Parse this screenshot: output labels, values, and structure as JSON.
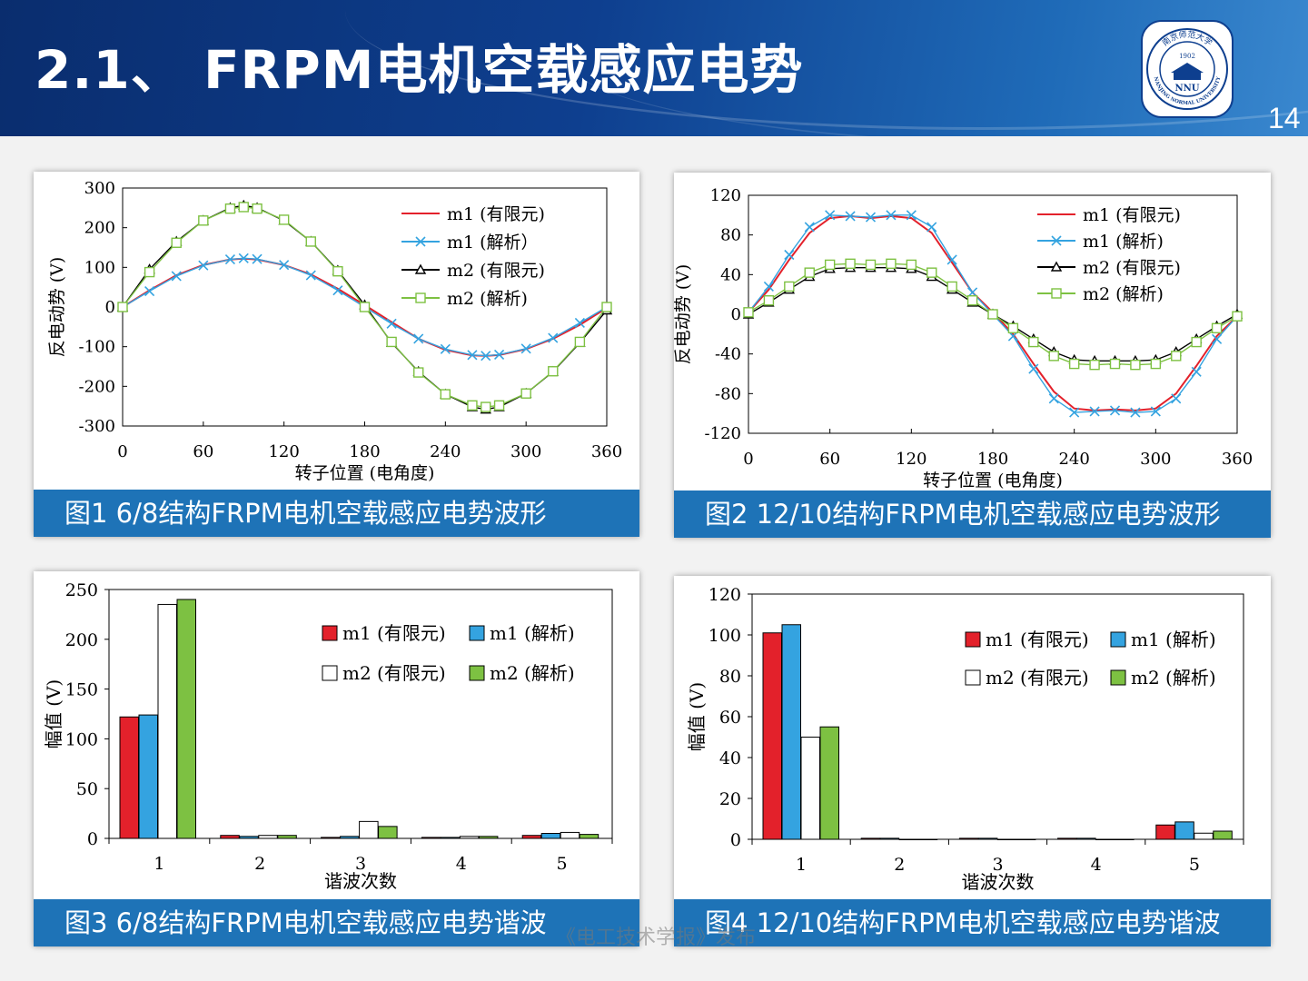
{
  "page": {
    "title": "2.1、 FRPM电机空载感应电势",
    "page_number": "14",
    "watermark": "《电工技术学报》发布",
    "logo": {
      "text_top": "南京师范大学",
      "year": "1902",
      "abbr": "NNU",
      "text_bottom": "NANJING NORMAL UNIVERSITY"
    }
  },
  "captions": [
    "图1  6/8结构FRPM电机空载感应电势波形",
    "图2  12/10结构FRPM电机空载感应电势波形",
    "图3  6/8结构FRPM电机空载感应电势谐波",
    "图4  12/10结构FRPM电机空载感应电势谐波"
  ],
  "colors": {
    "red": "#e3212b",
    "blue": "#34a3e0",
    "black": "#000000",
    "green": "#7dc142",
    "caption_bg": "#1e73b7"
  },
  "chart_data": [
    {
      "type": "line",
      "xlabel": "转子位置 (电角度)",
      "ylabel": "反电动势 (V)",
      "xlim": [
        0,
        360
      ],
      "ylim": [
        -300,
        300
      ],
      "xticks": [
        0,
        60,
        120,
        180,
        240,
        300,
        360
      ],
      "yticks": [
        -300,
        -200,
        -100,
        0,
        100,
        200,
        300
      ],
      "x": [
        0,
        20,
        40,
        60,
        80,
        90,
        100,
        120,
        140,
        160,
        180,
        200,
        220,
        240,
        260,
        270,
        280,
        300,
        320,
        340,
        360
      ],
      "legend": "top-right",
      "series": [
        {
          "name": "m1 (有限元)",
          "style": "line",
          "color": "#e3212b",
          "values": [
            0,
            42,
            80,
            106,
            120,
            122,
            120,
            106,
            82,
            46,
            5,
            -38,
            -80,
            -108,
            -122,
            -123,
            -121,
            -106,
            -80,
            -45,
            -2
          ]
        },
        {
          "name": "m1 (解析）",
          "style": "x",
          "color": "#34a3e0",
          "values": [
            0,
            40,
            78,
            105,
            120,
            123,
            121,
            106,
            80,
            42,
            0,
            -42,
            -80,
            -106,
            -121,
            -123,
            -120,
            -105,
            -78,
            -40,
            0
          ]
        },
        {
          "name": "m2 (有限元)",
          "style": "triangle",
          "color": "#000000",
          "values": [
            0,
            95,
            165,
            218,
            250,
            256,
            250,
            218,
            165,
            92,
            5,
            -90,
            -163,
            -220,
            -252,
            -258,
            -252,
            -218,
            -163,
            -90,
            -8
          ]
        },
        {
          "name": "m2 (解析)",
          "style": "square",
          "color": "#7dc142",
          "values": [
            0,
            88,
            162,
            218,
            248,
            252,
            248,
            220,
            165,
            90,
            0,
            -88,
            -165,
            -220,
            -248,
            -252,
            -248,
            -218,
            -162,
            -88,
            0
          ]
        }
      ]
    },
    {
      "type": "line",
      "xlabel": "转子位置 (电角度)",
      "ylabel": "反电动势 (V)",
      "xlim": [
        0,
        360
      ],
      "ylim": [
        -120,
        120
      ],
      "xticks": [
        0,
        60,
        120,
        180,
        240,
        300,
        360
      ],
      "yticks": [
        -120,
        -80,
        -40,
        0,
        40,
        80,
        120
      ],
      "x": [
        0,
        15,
        30,
        45,
        60,
        75,
        90,
        105,
        120,
        135,
        150,
        165,
        180,
        195,
        210,
        225,
        240,
        255,
        270,
        285,
        300,
        315,
        330,
        345,
        360
      ],
      "legend": "top-right",
      "series": [
        {
          "name": "m1 (有限元)",
          "style": "line",
          "color": "#e3212b",
          "values": [
            2,
            25,
            55,
            82,
            97,
            99,
            97,
            99,
            97,
            82,
            52,
            22,
            2,
            -20,
            -50,
            -78,
            -95,
            -97,
            -96,
            -97,
            -95,
            -80,
            -52,
            -22,
            -2
          ]
        },
        {
          "name": "m1 (解析)",
          "style": "x",
          "color": "#34a3e0",
          "values": [
            2,
            28,
            60,
            88,
            100,
            99,
            98,
            100,
            100,
            88,
            55,
            22,
            0,
            -22,
            -55,
            -85,
            -99,
            -98,
            -97,
            -99,
            -98,
            -85,
            -58,
            -25,
            -2
          ]
        },
        {
          "name": "m2 (有限元)",
          "style": "triangle",
          "color": "#000000",
          "values": [
            0,
            12,
            25,
            38,
            46,
            47,
            47,
            47,
            46,
            38,
            25,
            12,
            0,
            -12,
            -25,
            -38,
            -46,
            -47,
            -47,
            -47,
            -46,
            -38,
            -25,
            -12,
            0
          ]
        },
        {
          "name": "m2 (解析)",
          "style": "square",
          "color": "#7dc142",
          "values": [
            2,
            14,
            28,
            42,
            50,
            51,
            50,
            51,
            50,
            42,
            28,
            14,
            0,
            -14,
            -28,
            -42,
            -50,
            -51,
            -50,
            -51,
            -50,
            -42,
            -28,
            -14,
            -2
          ]
        }
      ]
    },
    {
      "type": "bar",
      "xlabel": "谐波次数",
      "ylabel": "幅值 (V)",
      "ylim": [
        0,
        250
      ],
      "yticks": [
        0,
        50,
        100,
        150,
        200,
        250
      ],
      "categories": [
        "1",
        "2",
        "3",
        "4",
        "5"
      ],
      "legend": "top-right",
      "series": [
        {
          "name": "m1 (有限元)",
          "color": "#e3212b",
          "values": [
            122,
            3,
            1,
            1,
            3
          ]
        },
        {
          "name": "m1 (解析)",
          "color": "#34a3e0",
          "values": [
            124,
            2,
            2,
            1,
            5
          ]
        },
        {
          "name": "m2 (有限元)",
          "color": "#ffffff",
          "values": [
            235,
            3,
            17,
            2,
            6
          ]
        },
        {
          "name": "m2 (解析)",
          "color": "#7dc142",
          "values": [
            240,
            3,
            12,
            2,
            4
          ]
        }
      ]
    },
    {
      "type": "bar",
      "xlabel": "谐波次数",
      "ylabel": "幅值 (V)",
      "ylim": [
        0,
        120
      ],
      "yticks": [
        0,
        20,
        40,
        60,
        80,
        100,
        120
      ],
      "categories": [
        "1",
        "2",
        "3",
        "4",
        "5"
      ],
      "legend": "top-right",
      "series": [
        {
          "name": "m1 (有限元)",
          "color": "#e3212b",
          "values": [
            101,
            0.5,
            0.5,
            0.5,
            7
          ]
        },
        {
          "name": "m1 (解析)",
          "color": "#34a3e0",
          "values": [
            105,
            0.5,
            0.5,
            0.5,
            8.5
          ]
        },
        {
          "name": "m2 (有限元)",
          "color": "#ffffff",
          "values": [
            50,
            0,
            0,
            0,
            3
          ]
        },
        {
          "name": "m2 (解析)",
          "color": "#7dc142",
          "values": [
            55,
            0,
            0,
            0,
            4
          ]
        }
      ]
    }
  ]
}
